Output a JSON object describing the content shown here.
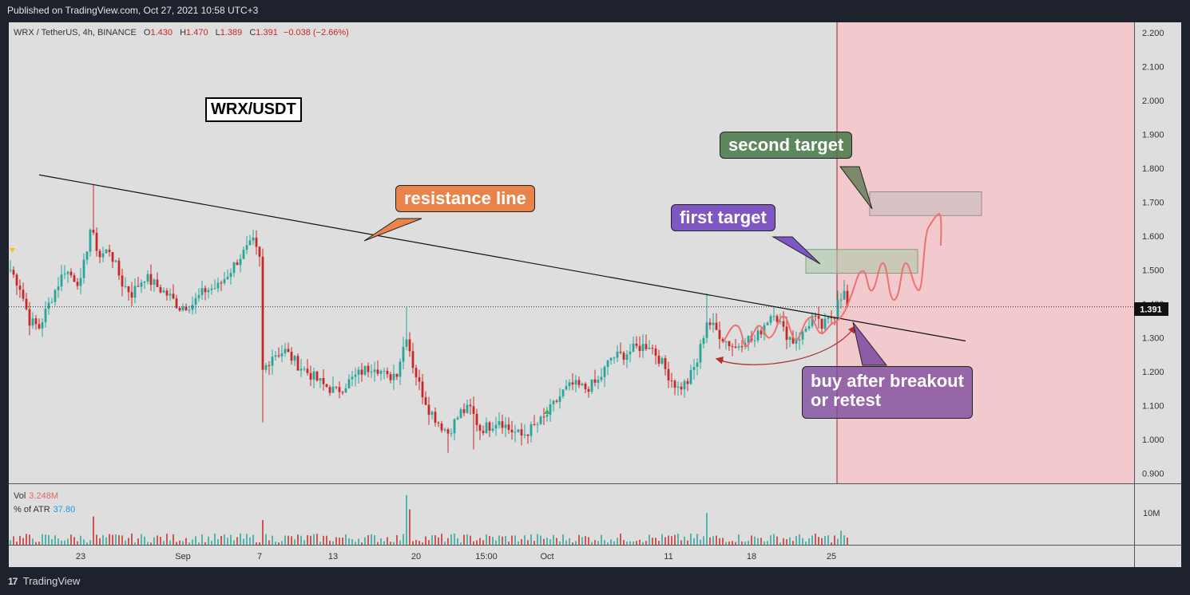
{
  "header": {
    "published": "Published on TradingView.com, Oct 27, 2021 10:58 UTC+3"
  },
  "legend": {
    "symbol": "WRX / TetherUS, 4h, BINANCE",
    "o_label": "O",
    "o_val": "1.430",
    "h_label": "H",
    "h_val": "1.470",
    "l_label": "L",
    "l_val": "1.389",
    "c_label": "C",
    "c_val": "1.391",
    "change": "−0.038 (−2.66%)"
  },
  "annotations": {
    "pair_label": "WRX/USDT",
    "resistance": "resistance line",
    "first_target": "first target",
    "second_target": "second target",
    "buy_line1": "buy after breakout",
    "buy_line2": "or retest"
  },
  "indicators": {
    "vol_label": "Vol",
    "vol_val": "3.248M",
    "atr_label": "% of ATR",
    "atr_val": "37.80",
    "vol_axis_label": "10M"
  },
  "price_tag": "1.391",
  "footer": {
    "logo": "17",
    "brand": "TradingView"
  },
  "colors": {
    "up": "#26a69a",
    "down": "#c62828",
    "resistance_callout": "#e8834a",
    "first_target_callout": "#7e57c2",
    "second_target_callout": "#5b8a5b",
    "buy_callout": "#8e5ba8",
    "projection": "#f07070",
    "future_zone": "#f2c9cc"
  },
  "chart_data": {
    "type": "candlestick",
    "symbol": "WRX / TetherUS",
    "interval": "4h",
    "exchange": "BINANCE",
    "ylim": [
      0.87,
      2.23
    ],
    "yticks": [
      0.9,
      1.0,
      1.1,
      1.2,
      1.3,
      1.4,
      1.5,
      1.6,
      1.7,
      1.8,
      1.9,
      2.0,
      2.1,
      2.2
    ],
    "ytick_labels": [
      "0.900",
      "1.000",
      "1.100",
      "1.200",
      "1.300",
      "1.400",
      "1.500",
      "1.600",
      "1.700",
      "1.800",
      "1.900",
      "2.000",
      "2.100",
      "2.200"
    ],
    "xticks": [
      {
        "label": "23",
        "bar": 22
      },
      {
        "label": "Sep",
        "bar": 54
      },
      {
        "label": "7",
        "bar": 78
      },
      {
        "label": "13",
        "bar": 101
      },
      {
        "label": "20",
        "bar": 127
      },
      {
        "label": "15:00",
        "bar": 149
      },
      {
        "label": "Oct",
        "bar": 168
      },
      {
        "label": "11",
        "bar": 206
      },
      {
        "label": "18",
        "bar": 232
      },
      {
        "label": "25",
        "bar": 257
      }
    ],
    "last_close": 1.391,
    "close_path": [
      [
        0,
        1.5
      ],
      [
        3,
        1.45
      ],
      [
        6,
        1.35
      ],
      [
        9,
        1.33
      ],
      [
        13,
        1.42
      ],
      [
        17,
        1.5
      ],
      [
        22,
        1.46
      ],
      [
        25,
        1.62
      ],
      [
        28,
        1.54
      ],
      [
        31,
        1.56
      ],
      [
        35,
        1.46
      ],
      [
        38,
        1.43
      ],
      [
        42,
        1.48
      ],
      [
        46,
        1.45
      ],
      [
        50,
        1.42
      ],
      [
        53,
        1.39
      ],
      [
        57,
        1.4
      ],
      [
        61,
        1.44
      ],
      [
        65,
        1.45
      ],
      [
        69,
        1.5
      ],
      [
        72,
        1.54
      ],
      [
        76,
        1.58
      ],
      [
        78,
        1.53
      ],
      [
        79,
        1.2
      ],
      [
        82,
        1.25
      ],
      [
        86,
        1.26
      ],
      [
        90,
        1.22
      ],
      [
        94,
        1.19
      ],
      [
        98,
        1.16
      ],
      [
        102,
        1.14
      ],
      [
        106,
        1.17
      ],
      [
        110,
        1.2
      ],
      [
        114,
        1.22
      ],
      [
        118,
        1.18
      ],
      [
        121,
        1.2
      ],
      [
        124,
        1.31
      ],
      [
        126,
        1.22
      ],
      [
        128,
        1.16
      ],
      [
        131,
        1.09
      ],
      [
        134,
        1.05
      ],
      [
        137,
        1.02
      ],
      [
        141,
        1.08
      ],
      [
        144,
        1.09
      ],
      [
        147,
        1.03
      ],
      [
        150,
        1.04
      ],
      [
        153,
        1.06
      ],
      [
        156,
        1.03
      ],
      [
        160,
        1.01
      ],
      [
        163,
        1.03
      ],
      [
        167,
        1.06
      ],
      [
        170,
        1.1
      ],
      [
        173,
        1.14
      ],
      [
        176,
        1.16
      ],
      [
        180,
        1.15
      ],
      [
        184,
        1.17
      ],
      [
        188,
        1.24
      ],
      [
        192,
        1.25
      ],
      [
        196,
        1.27
      ],
      [
        200,
        1.28
      ],
      [
        203,
        1.24
      ],
      [
        206,
        1.19
      ],
      [
        209,
        1.15
      ],
      [
        212,
        1.17
      ],
      [
        215,
        1.23
      ],
      [
        218,
        1.35
      ],
      [
        221,
        1.32
      ],
      [
        224,
        1.29
      ],
      [
        227,
        1.27
      ],
      [
        230,
        1.3
      ],
      [
        233,
        1.29
      ],
      [
        236,
        1.34
      ],
      [
        239,
        1.38
      ],
      [
        242,
        1.32
      ],
      [
        245,
        1.29
      ],
      [
        248,
        1.31
      ],
      [
        251,
        1.36
      ],
      [
        254,
        1.33
      ],
      [
        256,
        1.35
      ],
      [
        258,
        1.37
      ],
      [
        259,
        1.42
      ],
      [
        261,
        1.43
      ],
      [
        262,
        1.39
      ]
    ],
    "spikes": [
      {
        "bar": 26,
        "high": 1.75
      },
      {
        "bar": 74,
        "high": 1.6
      },
      {
        "bar": 79,
        "low": 1.05
      },
      {
        "bar": 124,
        "high": 1.39
      },
      {
        "bar": 137,
        "low": 0.96
      },
      {
        "bar": 145,
        "low": 0.97
      },
      {
        "bar": 218,
        "high": 1.43
      },
      {
        "bar": 208,
        "low": 1.13
      },
      {
        "bar": 261,
        "high": 1.47
      }
    ],
    "resistance_line": [
      [
        9,
        1.78
      ],
      [
        299,
        1.29
      ]
    ],
    "zones": [
      {
        "name": "first target",
        "bar0": 249,
        "bar1": 284,
        "low": 1.49,
        "high": 1.56
      },
      {
        "name": "second target",
        "bar0": 269,
        "bar1": 304,
        "low": 1.66,
        "high": 1.73
      }
    ],
    "future_start_bar": 263,
    "volume": {
      "ylim": [
        0,
        16
      ],
      "unit": "M"
    }
  }
}
